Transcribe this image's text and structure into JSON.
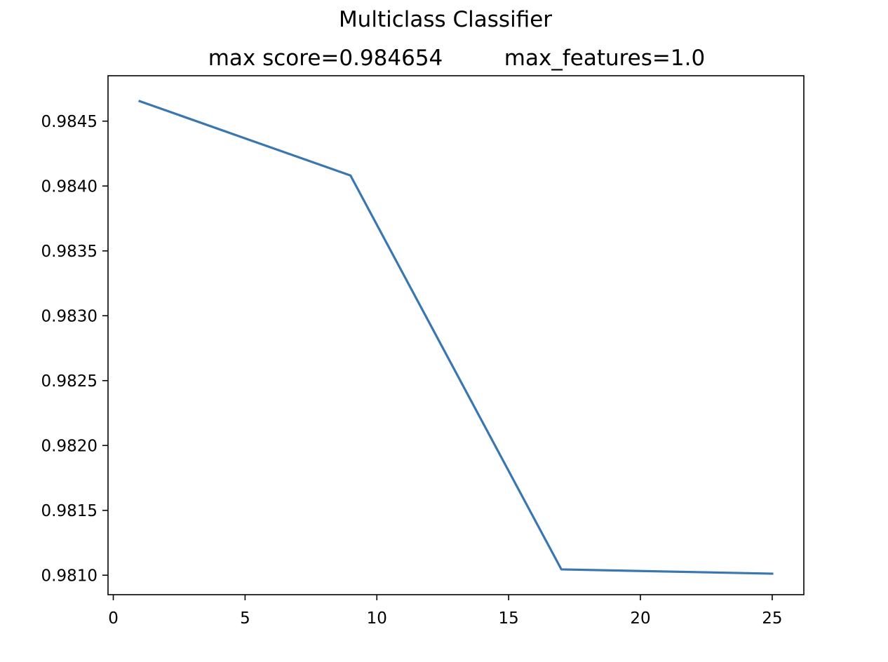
{
  "figure": {
    "suptitle": "Multiclass Classifier",
    "subtitle_left": "max score=0.984654",
    "subtitle_right": "max_features=1.0"
  },
  "chart_data": {
    "type": "line",
    "title": "Multiclass Classifier",
    "subtitle": "max score=0.984654      max_features=1.0",
    "xlabel": "",
    "ylabel": "",
    "xlim": [
      -0.2,
      26.2
    ],
    "ylim": [
      0.98085,
      0.98485
    ],
    "x_ticks": [
      0,
      5,
      10,
      15,
      20,
      25
    ],
    "x_tick_labels": [
      "0",
      "5",
      "10",
      "15",
      "20",
      "25"
    ],
    "y_ticks": [
      0.981,
      0.9815,
      0.982,
      0.9825,
      0.983,
      0.9835,
      0.984,
      0.9845
    ],
    "y_tick_labels": [
      "0.9810",
      "0.9815",
      "0.9820",
      "0.9825",
      "0.9830",
      "0.9835",
      "0.9840",
      "0.9845"
    ],
    "grid": false,
    "legend": "none",
    "line_color": "#3a76af",
    "series": [
      {
        "x": [
          1,
          9,
          17,
          25
        ],
        "y": [
          0.984654,
          0.984081,
          0.981045,
          0.981012
        ]
      }
    ]
  }
}
